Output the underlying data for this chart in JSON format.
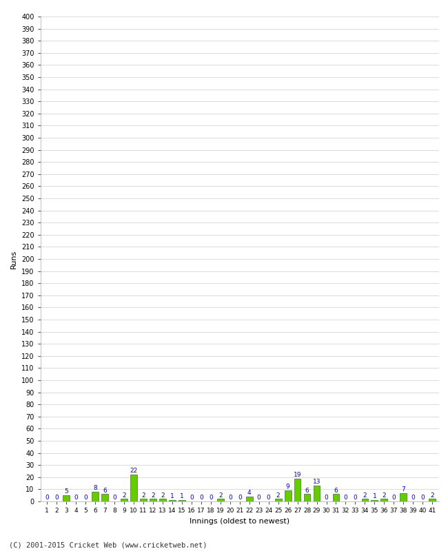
{
  "xlabel": "Innings (oldest to newest)",
  "ylabel": "Runs",
  "footer": "(C) 2001-2015 Cricket Web (www.cricketweb.net)",
  "ylim": [
    0,
    400
  ],
  "ytick_step": 10,
  "bar_color": "#66cc00",
  "bar_edge_color": "#228800",
  "label_color": "#0000cc",
  "background_color": "#ffffff",
  "grid_color": "#cccccc",
  "innings": [
    1,
    2,
    3,
    4,
    5,
    6,
    7,
    8,
    9,
    10,
    11,
    12,
    13,
    14,
    15,
    16,
    17,
    18,
    19,
    20,
    21,
    22,
    23,
    24,
    25,
    26,
    27,
    28,
    29,
    30,
    31,
    32,
    33,
    34,
    35,
    36,
    37,
    38,
    39,
    40,
    41
  ],
  "values": [
    0,
    0,
    5,
    0,
    0,
    8,
    6,
    0,
    2,
    22,
    2,
    2,
    2,
    1,
    1,
    0,
    0,
    0,
    2,
    0,
    0,
    4,
    0,
    0,
    2,
    9,
    19,
    6,
    13,
    0,
    6,
    0,
    0,
    2,
    1,
    2,
    0,
    7,
    0,
    0,
    2
  ]
}
